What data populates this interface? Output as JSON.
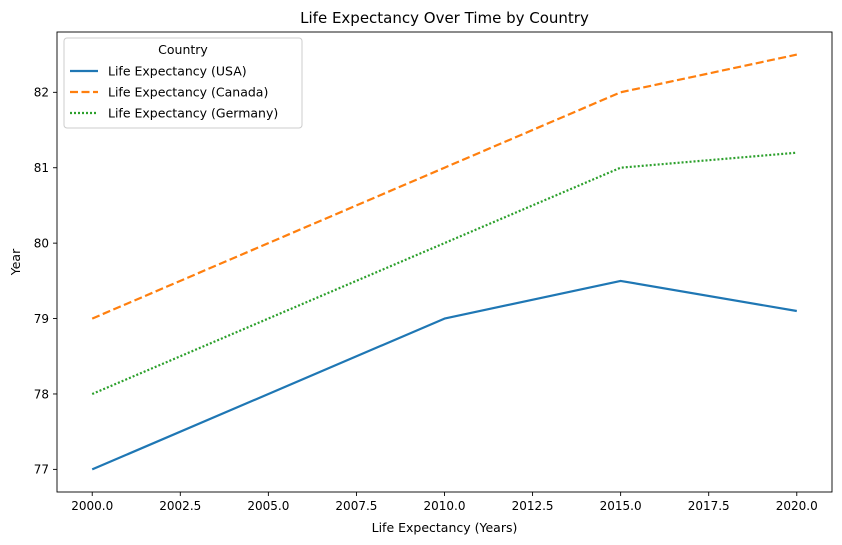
{
  "chart_data": {
    "type": "line",
    "title": "Life Expectancy Over Time by Country",
    "xlabel": "Life Expectancy (Years)",
    "ylabel": "Year",
    "xlim": [
      1999.0,
      2021.0
    ],
    "ylim": [
      76.7,
      82.8
    ],
    "x": [
      2000,
      2010,
      2015,
      2020
    ],
    "x_ticks": [
      2000.0,
      2002.5,
      2005.0,
      2007.5,
      2010.0,
      2012.5,
      2015.0,
      2017.5,
      2020.0
    ],
    "x_tick_labels": [
      "2000.0",
      "2002.5",
      "2005.0",
      "2007.5",
      "2010.0",
      "2012.5",
      "2015.0",
      "2017.5",
      "2020.0"
    ],
    "y_ticks": [
      77,
      78,
      79,
      80,
      81,
      82
    ],
    "y_tick_labels": [
      "77",
      "78",
      "79",
      "80",
      "81",
      "82"
    ],
    "grid": false,
    "legend_title": "Country",
    "legend_position": "top-left",
    "series": [
      {
        "name": "Life Expectancy (USA)",
        "values": [
          77.0,
          79.0,
          79.5,
          79.1
        ],
        "color": "#1f77b4",
        "style": "solid"
      },
      {
        "name": "Life Expectancy (Canada)",
        "values": [
          79.0,
          81.0,
          82.0,
          82.5
        ],
        "color": "#ff7f0e",
        "style": "dashed"
      },
      {
        "name": "Life Expectancy (Germany)",
        "values": [
          78.0,
          80.0,
          81.0,
          81.2
        ],
        "color": "#2ca02c",
        "style": "dotted"
      }
    ]
  }
}
